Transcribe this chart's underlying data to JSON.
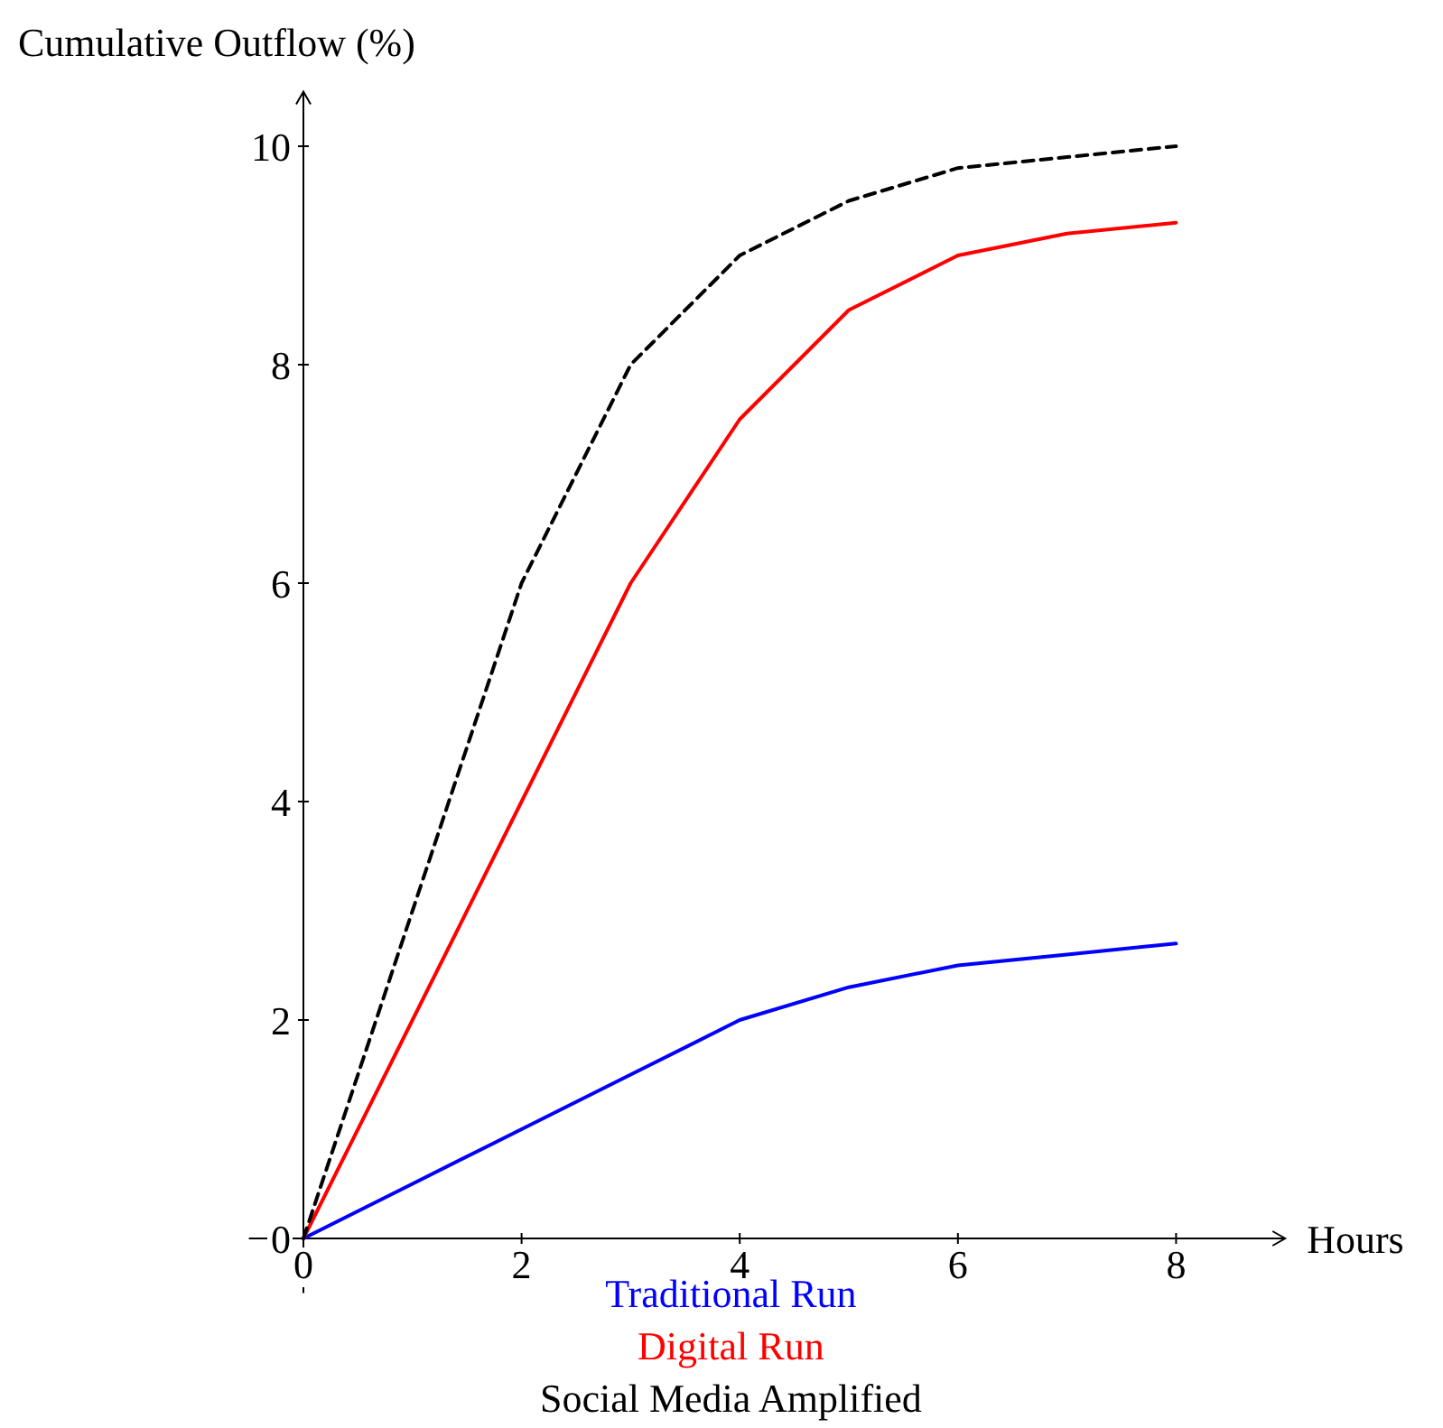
{
  "chart_data": {
    "type": "line",
    "xlabel": "Hours",
    "ylabel": "Cumulative Outflow (%)",
    "xlim": [
      -0.5,
      9
    ],
    "ylim": [
      -0.5,
      10.5
    ],
    "xticks": [
      0,
      2,
      4,
      6,
      8
    ],
    "yticks": [
      0,
      2,
      4,
      6,
      8,
      10
    ],
    "grid": false,
    "legend": "bottom",
    "marker": "none",
    "series": [
      {
        "name": "Traditional Run",
        "color": "#0000ff",
        "line_style": "solid",
        "x": [
          0,
          1,
          2,
          3,
          4,
          5,
          6,
          7,
          8
        ],
        "values": [
          0,
          0.5,
          1,
          1.5,
          2,
          2.3,
          2.5,
          2.6,
          2.7
        ]
      },
      {
        "name": "Digital Run",
        "color": "#ff0000",
        "line_style": "solid",
        "x": [
          0,
          1,
          2,
          3,
          4,
          5,
          6,
          7,
          8
        ],
        "values": [
          0,
          2,
          4,
          6,
          7.5,
          8.5,
          9,
          9.2,
          9.3
        ]
      },
      {
        "name": "Social Media Amplified",
        "color": "#000000",
        "line_style": "dashed",
        "x": [
          0,
          1,
          2,
          3,
          4,
          5,
          6,
          7,
          8
        ],
        "values": [
          0,
          3,
          6,
          8,
          9,
          9.5,
          9.8,
          9.9,
          10
        ]
      }
    ]
  }
}
